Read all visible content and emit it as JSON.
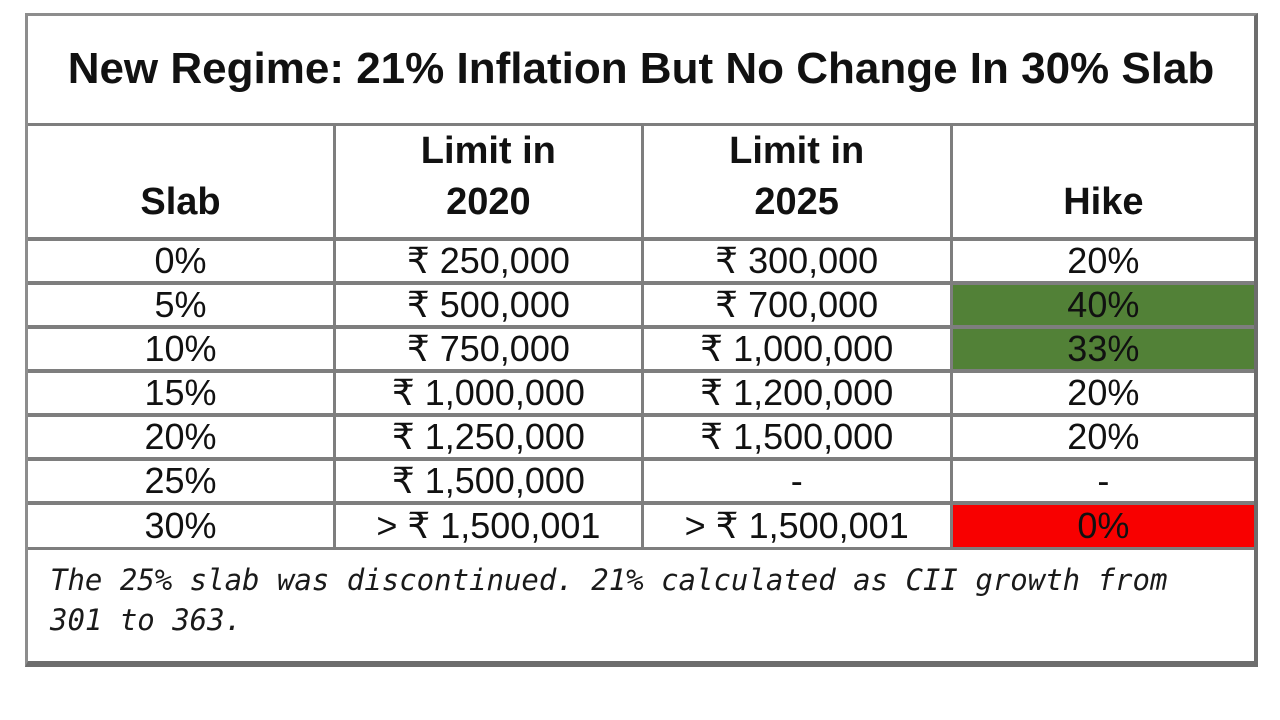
{
  "chart_data": {
    "type": "table",
    "title": "New Regime: 21% Inflation But No Change In 30% Slab",
    "columns": [
      "Slab",
      "Limit in 2020",
      "Limit in 2025",
      "Hike"
    ],
    "rows": [
      [
        "0%",
        "₹ 250,000",
        "₹ 300,000",
        "20%"
      ],
      [
        "5%",
        "₹ 500,000",
        "₹ 700,000",
        "40%"
      ],
      [
        "10%",
        "₹ 750,000",
        "₹ 1,000,000",
        "33%"
      ],
      [
        "15%",
        "₹ 1,000,000",
        "₹ 1,200,000",
        "20%"
      ],
      [
        "20%",
        "₹ 1,250,000",
        "₹ 1,500,000",
        "20%"
      ],
      [
        "25%",
        "₹ 1,500,000",
        "-",
        "-"
      ],
      [
        "30%",
        "> ₹ 1,500,001",
        "> ₹ 1,500,001",
        "0%"
      ]
    ],
    "highlights": [
      {
        "row": 1,
        "column": "Hike",
        "color": "green"
      },
      {
        "row": 2,
        "column": "Hike",
        "color": "green"
      },
      {
        "row": 6,
        "column": "Hike",
        "color": "red"
      }
    ],
    "footnote": "The 25% slab was discontinued. 21% calculated as CII growth from 301 to 363."
  },
  "ui": {
    "header_lines": [
      "Slab",
      "Limit in\n2020",
      "Limit in\n2025",
      "Hike"
    ]
  },
  "colors": {
    "highlight_green": "#528137",
    "highlight_red": "#f80000",
    "border_gray": "#7e7e7e"
  }
}
